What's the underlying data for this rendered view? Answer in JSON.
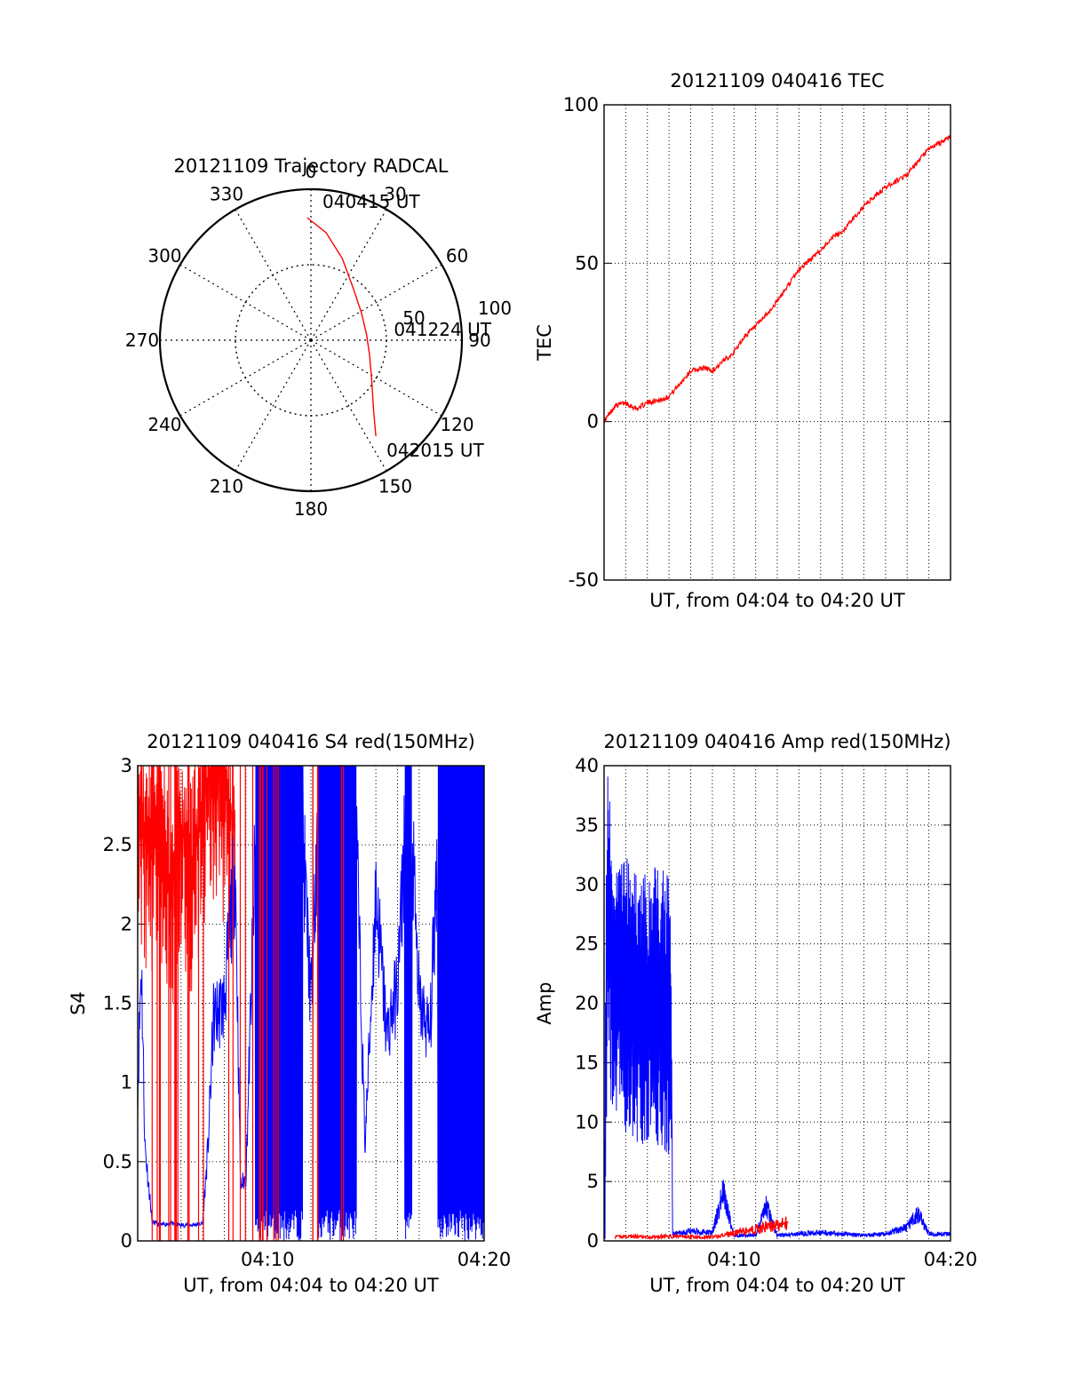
{
  "chart_data": [
    {
      "type": "polar",
      "title": "20121109 Trajectory RADCAL",
      "angle_labels": [
        "0",
        "30",
        "60",
        "90",
        "120",
        "150",
        "180",
        "210",
        "240",
        "270",
        "300",
        "330"
      ],
      "radial_labels": [
        "50",
        "100"
      ],
      "rlim": [
        0,
        100
      ],
      "grid": true,
      "series": [
        {
          "color": "#ff0000",
          "points": [
            {
              "az": -1.8,
              "zen": 81.2
            },
            {
              "az": 8,
              "zen": 72
            },
            {
              "az": 21,
              "zen": 58
            },
            {
              "az": 40,
              "zen": 44
            },
            {
              "az": 62,
              "zen": 38
            },
            {
              "az": 84,
              "zen": 37
            },
            {
              "az": 104,
              "zen": 40
            },
            {
              "az": 123,
              "zen": 48
            },
            {
              "az": 138,
              "zen": 62
            },
            {
              "az": 145.9,
              "zen": 76.7
            }
          ]
        }
      ],
      "annotations": [
        {
          "text": "040415 UT",
          "az": 5,
          "zen": 88
        },
        {
          "text": "041224 UT",
          "az": 87,
          "zen": 55
        },
        {
          "text": "042015 UT",
          "az": 147,
          "zen": 92
        }
      ]
    },
    {
      "type": "line",
      "title": "20121109 040416 TEC",
      "xlabel": "UT, from 04:04 to 04:20 UT",
      "ylabel": "TEC",
      "xlim": [
        "04:04",
        "04:20"
      ],
      "ylim": [
        -50,
        100
      ],
      "yticks": [
        "-50",
        "0",
        "50",
        "100"
      ],
      "xticks": [],
      "grid": true,
      "series": [
        {
          "color": "#ff0000",
          "x": [
            "04:04",
            "04:04:30",
            "04:05",
            "04:05:30",
            "04:06",
            "04:06:40",
            "04:07",
            "04:07:30",
            "04:08",
            "04:08:40",
            "04:09",
            "04:09:30",
            "04:10",
            "04:10:30",
            "04:11",
            "04:11:40",
            "04:12",
            "04:12:30",
            "04:13",
            "04:13:30",
            "04:14",
            "04:14:30",
            "04:15",
            "04:15:30",
            "04:16",
            "04:16:30",
            "04:17",
            "04:17:30",
            "04:18",
            "04:18:30",
            "04:19",
            "04:19:30",
            "04:20"
          ],
          "y": [
            0,
            5,
            6,
            4,
            6,
            7,
            8,
            12,
            16,
            17,
            16,
            19,
            22,
            27,
            30,
            35,
            38,
            43,
            48,
            51,
            54,
            58,
            60,
            64,
            68,
            71,
            74,
            76,
            78,
            82,
            86,
            88,
            90
          ]
        }
      ]
    },
    {
      "type": "line",
      "title": "20121109 040416 S4 red(150MHz)",
      "xlabel": "UT, from 04:04 to 04:20 UT",
      "ylabel": "S4",
      "xlim": [
        "04:04",
        "04:20"
      ],
      "ylim": [
        0,
        3
      ],
      "yticks": [
        "0",
        "0.5",
        "1",
        "1.5",
        "2",
        "2.5",
        "3"
      ],
      "xticks": [
        "04:10",
        "04:20"
      ],
      "grid": true,
      "series": [
        {
          "color": "#0000ff",
          "x": [
            "04:04",
            "04:04:10",
            "04:04:20",
            "04:04:40",
            "04:05",
            "04:05:30",
            "04:06",
            "04:06:30",
            "04:07",
            "04:07:15",
            "04:07:30",
            "04:08",
            "04:08:30",
            "04:08:45",
            "04:09",
            "04:09:30",
            "04:10",
            "04:10:30",
            "04:11",
            "04:11:30",
            "04:12",
            "04:12:30",
            "04:13",
            "04:13:30",
            "04:14",
            "04:14:30",
            "04:15",
            "04:15:30",
            "04:16",
            "04:16:30",
            "04:17",
            "04:17:30",
            "04:18",
            "04:18:30",
            "04:19",
            "04:19:30",
            "04:20"
          ],
          "y": [
            0.9,
            1.8,
            0.6,
            0.12,
            0.1,
            0.11,
            0.1,
            0.1,
            0.11,
            0.6,
            1.4,
            1.5,
            2.4,
            0.35,
            0.4,
            2.8,
            3,
            2.7,
            3,
            2.9,
            1.5,
            3,
            2.6,
            3,
            3,
            0.6,
            2.2,
            1.3,
            1.6,
            3,
            1.5,
            1.3,
            3,
            3,
            3,
            3,
            3
          ]
        },
        {
          "color": "#ff0000",
          "x": [
            "04:04",
            "04:04:30",
            "04:05",
            "04:05:30",
            "04:06",
            "04:06:30",
            "04:07",
            "04:07:30",
            "04:08",
            "04:08:30"
          ],
          "y": [
            2.8,
            2.5,
            2.7,
            2.2,
            2.6,
            2.4,
            2.8,
            3,
            2.9,
            2.6
          ]
        }
      ]
    },
    {
      "type": "line",
      "title": "20121109 040416 Amp red(150MHz)",
      "xlabel": "UT, from 04:04 to 04:20 UT",
      "ylabel": "Amp",
      "xlim": [
        "04:04",
        "04:20"
      ],
      "ylim": [
        0,
        40
      ],
      "yticks": [
        "0",
        "5",
        "10",
        "15",
        "20",
        "25",
        "30",
        "35",
        "40"
      ],
      "xticks": [
        "04:10",
        "04:20"
      ],
      "grid": true,
      "series": [
        {
          "color": "#0000ff",
          "x": [
            "04:04",
            "04:04:10",
            "04:04:20",
            "04:04:40",
            "04:05",
            "04:05:30",
            "04:06",
            "04:06:30",
            "04:07",
            "04:07:05",
            "04:07:10",
            "04:08",
            "04:09",
            "04:09:30",
            "04:10",
            "04:11",
            "04:11:30",
            "04:12",
            "04:13",
            "04:14",
            "04:15",
            "04:16",
            "04:17",
            "04:18",
            "04:18:30",
            "04:19",
            "04:20"
          ],
          "y": [
            2,
            36,
            26,
            24,
            25,
            24,
            23,
            24,
            23,
            22,
            0.5,
            0.7,
            0.6,
            3.5,
            0.4,
            0.4,
            2.5,
            0.4,
            0.5,
            0.6,
            0.5,
            0.4,
            0.5,
            1.0,
            2.0,
            0.5,
            0.5
          ]
        },
        {
          "color": "#ff0000",
          "x": [
            "04:04:30",
            "04:05",
            "04:06",
            "04:07",
            "04:09",
            "04:12:30"
          ],
          "y": [
            0.3,
            0.4,
            0.3,
            0.4,
            0.3,
            1.5
          ]
        }
      ]
    }
  ]
}
